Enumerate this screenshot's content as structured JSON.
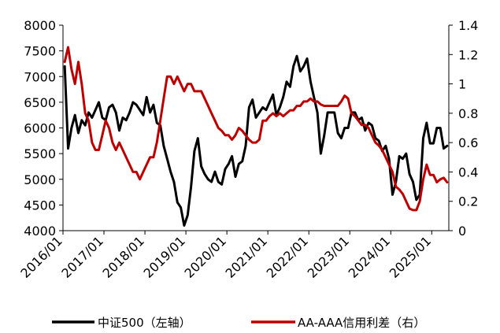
{
  "chart_data": {
    "type": "line",
    "title": "",
    "x_tick_labels": [
      "2016/01",
      "2017/01",
      "2018/01",
      "2019/01",
      "2020/01",
      "2021/01",
      "2022/01",
      "2023/01",
      "2024/01",
      "2025/01"
    ],
    "x_range": [
      "2016/01",
      "2025/05"
    ],
    "y_left": {
      "ylim": [
        4000,
        8000
      ],
      "ticks": [
        "4000",
        "4500",
        "5000",
        "5500",
        "6000",
        "6500",
        "7000",
        "7500",
        "8000"
      ]
    },
    "y_right": {
      "ylim": [
        0,
        1.4
      ],
      "ticks": [
        "0",
        "0.2",
        "0.4",
        "0.6",
        "0.8",
        "1",
        "1.2",
        "1.4"
      ]
    },
    "grid": false,
    "legend_position": "bottom",
    "series": [
      {
        "name": "中证500（左轴）",
        "axis": "left",
        "color": "#000000",
        "points": [
          [
            "2016/01",
            7200
          ],
          [
            "2016/02",
            5600
          ],
          [
            "2016/03",
            6000
          ],
          [
            "2016/04",
            6250
          ],
          [
            "2016/05",
            5900
          ],
          [
            "2016/06",
            6150
          ],
          [
            "2016/07",
            6050
          ],
          [
            "2016/08",
            6300
          ],
          [
            "2016/09",
            6200
          ],
          [
            "2016/10",
            6350
          ],
          [
            "2016/11",
            6500
          ],
          [
            "2016/12",
            6200
          ],
          [
            "2017/01",
            6150
          ],
          [
            "2017/02",
            6400
          ],
          [
            "2017/03",
            6450
          ],
          [
            "2017/04",
            6300
          ],
          [
            "2017/05",
            5950
          ],
          [
            "2017/06",
            6200
          ],
          [
            "2017/07",
            6150
          ],
          [
            "2017/08",
            6300
          ],
          [
            "2017/09",
            6500
          ],
          [
            "2017/10",
            6450
          ],
          [
            "2017/11",
            6350
          ],
          [
            "2017/12",
            6250
          ],
          [
            "2018/01",
            6600
          ],
          [
            "2018/02",
            6300
          ],
          [
            "2018/03",
            6450
          ],
          [
            "2018/04",
            6100
          ],
          [
            "2018/05",
            6050
          ],
          [
            "2018/06",
            5650
          ],
          [
            "2018/07",
            5400
          ],
          [
            "2018/08",
            5150
          ],
          [
            "2018/09",
            4950
          ],
          [
            "2018/10",
            4550
          ],
          [
            "2018/11",
            4450
          ],
          [
            "2018/12",
            4100
          ],
          [
            "2019/01",
            4300
          ],
          [
            "2019/02",
            4850
          ],
          [
            "2019/03",
            5550
          ],
          [
            "2019/04",
            5800
          ],
          [
            "2019/05",
            5250
          ],
          [
            "2019/06",
            5100
          ],
          [
            "2019/07",
            5000
          ],
          [
            "2019/08",
            4950
          ],
          [
            "2019/09",
            5150
          ],
          [
            "2019/10",
            4950
          ],
          [
            "2019/11",
            4900
          ],
          [
            "2019/12",
            5200
          ],
          [
            "2020/01",
            5300
          ],
          [
            "2020/02",
            5450
          ],
          [
            "2020/03",
            5050
          ],
          [
            "2020/04",
            5300
          ],
          [
            "2020/05",
            5350
          ],
          [
            "2020/06",
            5650
          ],
          [
            "2020/07",
            6400
          ],
          [
            "2020/08",
            6550
          ],
          [
            "2020/09",
            6200
          ],
          [
            "2020/10",
            6300
          ],
          [
            "2020/11",
            6400
          ],
          [
            "2020/12",
            6350
          ],
          [
            "2021/01",
            6500
          ],
          [
            "2021/02",
            6650
          ],
          [
            "2021/03",
            6250
          ],
          [
            "2021/04",
            6400
          ],
          [
            "2021/05",
            6600
          ],
          [
            "2021/06",
            6900
          ],
          [
            "2021/07",
            6800
          ],
          [
            "2021/08",
            7200
          ],
          [
            "2021/09",
            7400
          ],
          [
            "2021/10",
            7100
          ],
          [
            "2021/11",
            7200
          ],
          [
            "2021/12",
            7350
          ],
          [
            "2022/01",
            6900
          ],
          [
            "2022/02",
            6600
          ],
          [
            "2022/03",
            6300
          ],
          [
            "2022/04",
            5500
          ],
          [
            "2022/05",
            5850
          ],
          [
            "2022/06",
            6300
          ],
          [
            "2022/07",
            6300
          ],
          [
            "2022/08",
            6300
          ],
          [
            "2022/09",
            5900
          ],
          [
            "2022/10",
            5800
          ],
          [
            "2022/11",
            6000
          ],
          [
            "2022/12",
            6000
          ],
          [
            "2023/01",
            6300
          ],
          [
            "2023/02",
            6300
          ],
          [
            "2023/03",
            6150
          ],
          [
            "2023/04",
            6200
          ],
          [
            "2023/05",
            5950
          ],
          [
            "2023/06",
            6100
          ],
          [
            "2023/07",
            6050
          ],
          [
            "2023/08",
            5800
          ],
          [
            "2023/09",
            5750
          ],
          [
            "2023/10",
            5550
          ],
          [
            "2023/11",
            5650
          ],
          [
            "2023/12",
            5400
          ],
          [
            "2024/01",
            4700
          ],
          [
            "2024/02",
            4950
          ],
          [
            "2024/03",
            5450
          ],
          [
            "2024/04",
            5400
          ],
          [
            "2024/05",
            5500
          ],
          [
            "2024/06",
            5100
          ],
          [
            "2024/07",
            4950
          ],
          [
            "2024/08",
            4600
          ],
          [
            "2024/09",
            4700
          ],
          [
            "2024/10",
            5800
          ],
          [
            "2024/11",
            6100
          ],
          [
            "2024/12",
            5700
          ],
          [
            "2025/01",
            5700
          ],
          [
            "2025/02",
            6000
          ],
          [
            "2025/03",
            6000
          ],
          [
            "2025/04",
            5600
          ],
          [
            "2025/05",
            5650
          ]
        ]
      },
      {
        "name": "AA-AAA信用利差（右）",
        "axis": "right",
        "color": "#c00000",
        "points": [
          [
            "2016/01",
            1.15
          ],
          [
            "2016/02",
            1.25
          ],
          [
            "2016/03",
            1.1
          ],
          [
            "2016/04",
            1.0
          ],
          [
            "2016/05",
            1.15
          ],
          [
            "2016/06",
            1.0
          ],
          [
            "2016/07",
            0.8
          ],
          [
            "2016/08",
            0.75
          ],
          [
            "2016/09",
            0.6
          ],
          [
            "2016/10",
            0.55
          ],
          [
            "2016/11",
            0.55
          ],
          [
            "2016/12",
            0.65
          ],
          [
            "2017/01",
            0.75
          ],
          [
            "2017/02",
            0.7
          ],
          [
            "2017/03",
            0.6
          ],
          [
            "2017/04",
            0.55
          ],
          [
            "2017/05",
            0.6
          ],
          [
            "2017/06",
            0.55
          ],
          [
            "2017/07",
            0.5
          ],
          [
            "2017/08",
            0.45
          ],
          [
            "2017/09",
            0.4
          ],
          [
            "2017/10",
            0.4
          ],
          [
            "2017/11",
            0.35
          ],
          [
            "2017/12",
            0.4
          ],
          [
            "2018/01",
            0.45
          ],
          [
            "2018/02",
            0.5
          ],
          [
            "2018/03",
            0.5
          ],
          [
            "2018/04",
            0.6
          ],
          [
            "2018/05",
            0.75
          ],
          [
            "2018/06",
            0.9
          ],
          [
            "2018/07",
            1.05
          ],
          [
            "2018/08",
            1.05
          ],
          [
            "2018/09",
            1.0
          ],
          [
            "2018/10",
            1.05
          ],
          [
            "2018/11",
            1.0
          ],
          [
            "2018/12",
            0.95
          ],
          [
            "2019/01",
            1.0
          ],
          [
            "2019/02",
            1.0
          ],
          [
            "2019/03",
            0.95
          ],
          [
            "2019/04",
            0.95
          ],
          [
            "2019/05",
            0.95
          ],
          [
            "2019/06",
            0.9
          ],
          [
            "2019/07",
            0.85
          ],
          [
            "2019/08",
            0.8
          ],
          [
            "2019/09",
            0.75
          ],
          [
            "2019/10",
            0.7
          ],
          [
            "2019/11",
            0.68
          ],
          [
            "2019/12",
            0.65
          ],
          [
            "2020/01",
            0.65
          ],
          [
            "2020/02",
            0.62
          ],
          [
            "2020/03",
            0.65
          ],
          [
            "2020/04",
            0.7
          ],
          [
            "2020/05",
            0.68
          ],
          [
            "2020/06",
            0.65
          ],
          [
            "2020/07",
            0.62
          ],
          [
            "2020/08",
            0.6
          ],
          [
            "2020/09",
            0.6
          ],
          [
            "2020/10",
            0.62
          ],
          [
            "2020/11",
            0.75
          ],
          [
            "2020/12",
            0.75
          ],
          [
            "2021/01",
            0.78
          ],
          [
            "2021/02",
            0.8
          ],
          [
            "2021/03",
            0.78
          ],
          [
            "2021/04",
            0.8
          ],
          [
            "2021/05",
            0.78
          ],
          [
            "2021/06",
            0.8
          ],
          [
            "2021/07",
            0.82
          ],
          [
            "2021/08",
            0.82
          ],
          [
            "2021/09",
            0.85
          ],
          [
            "2021/10",
            0.85
          ],
          [
            "2021/11",
            0.88
          ],
          [
            "2021/12",
            0.88
          ],
          [
            "2022/01",
            0.9
          ],
          [
            "2022/02",
            0.88
          ],
          [
            "2022/03",
            0.88
          ],
          [
            "2022/04",
            0.86
          ],
          [
            "2022/05",
            0.85
          ],
          [
            "2022/06",
            0.85
          ],
          [
            "2022/07",
            0.85
          ],
          [
            "2022/08",
            0.85
          ],
          [
            "2022/09",
            0.85
          ],
          [
            "2022/10",
            0.88
          ],
          [
            "2022/11",
            0.92
          ],
          [
            "2022/12",
            0.9
          ],
          [
            "2023/01",
            0.8
          ],
          [
            "2023/02",
            0.78
          ],
          [
            "2023/03",
            0.75
          ],
          [
            "2023/04",
            0.72
          ],
          [
            "2023/05",
            0.72
          ],
          [
            "2023/06",
            0.7
          ],
          [
            "2023/07",
            0.65
          ],
          [
            "2023/08",
            0.6
          ],
          [
            "2023/09",
            0.58
          ],
          [
            "2023/10",
            0.55
          ],
          [
            "2023/11",
            0.5
          ],
          [
            "2023/12",
            0.45
          ],
          [
            "2024/01",
            0.4
          ],
          [
            "2024/02",
            0.3
          ],
          [
            "2024/03",
            0.28
          ],
          [
            "2024/04",
            0.25
          ],
          [
            "2024/05",
            0.2
          ],
          [
            "2024/06",
            0.15
          ],
          [
            "2024/07",
            0.14
          ],
          [
            "2024/08",
            0.14
          ],
          [
            "2024/09",
            0.2
          ],
          [
            "2024/10",
            0.35
          ],
          [
            "2024/11",
            0.45
          ],
          [
            "2024/12",
            0.38
          ],
          [
            "2025/01",
            0.38
          ],
          [
            "2025/02",
            0.33
          ],
          [
            "2025/03",
            0.35
          ],
          [
            "2025/04",
            0.36
          ],
          [
            "2025/05",
            0.33
          ]
        ]
      }
    ]
  }
}
